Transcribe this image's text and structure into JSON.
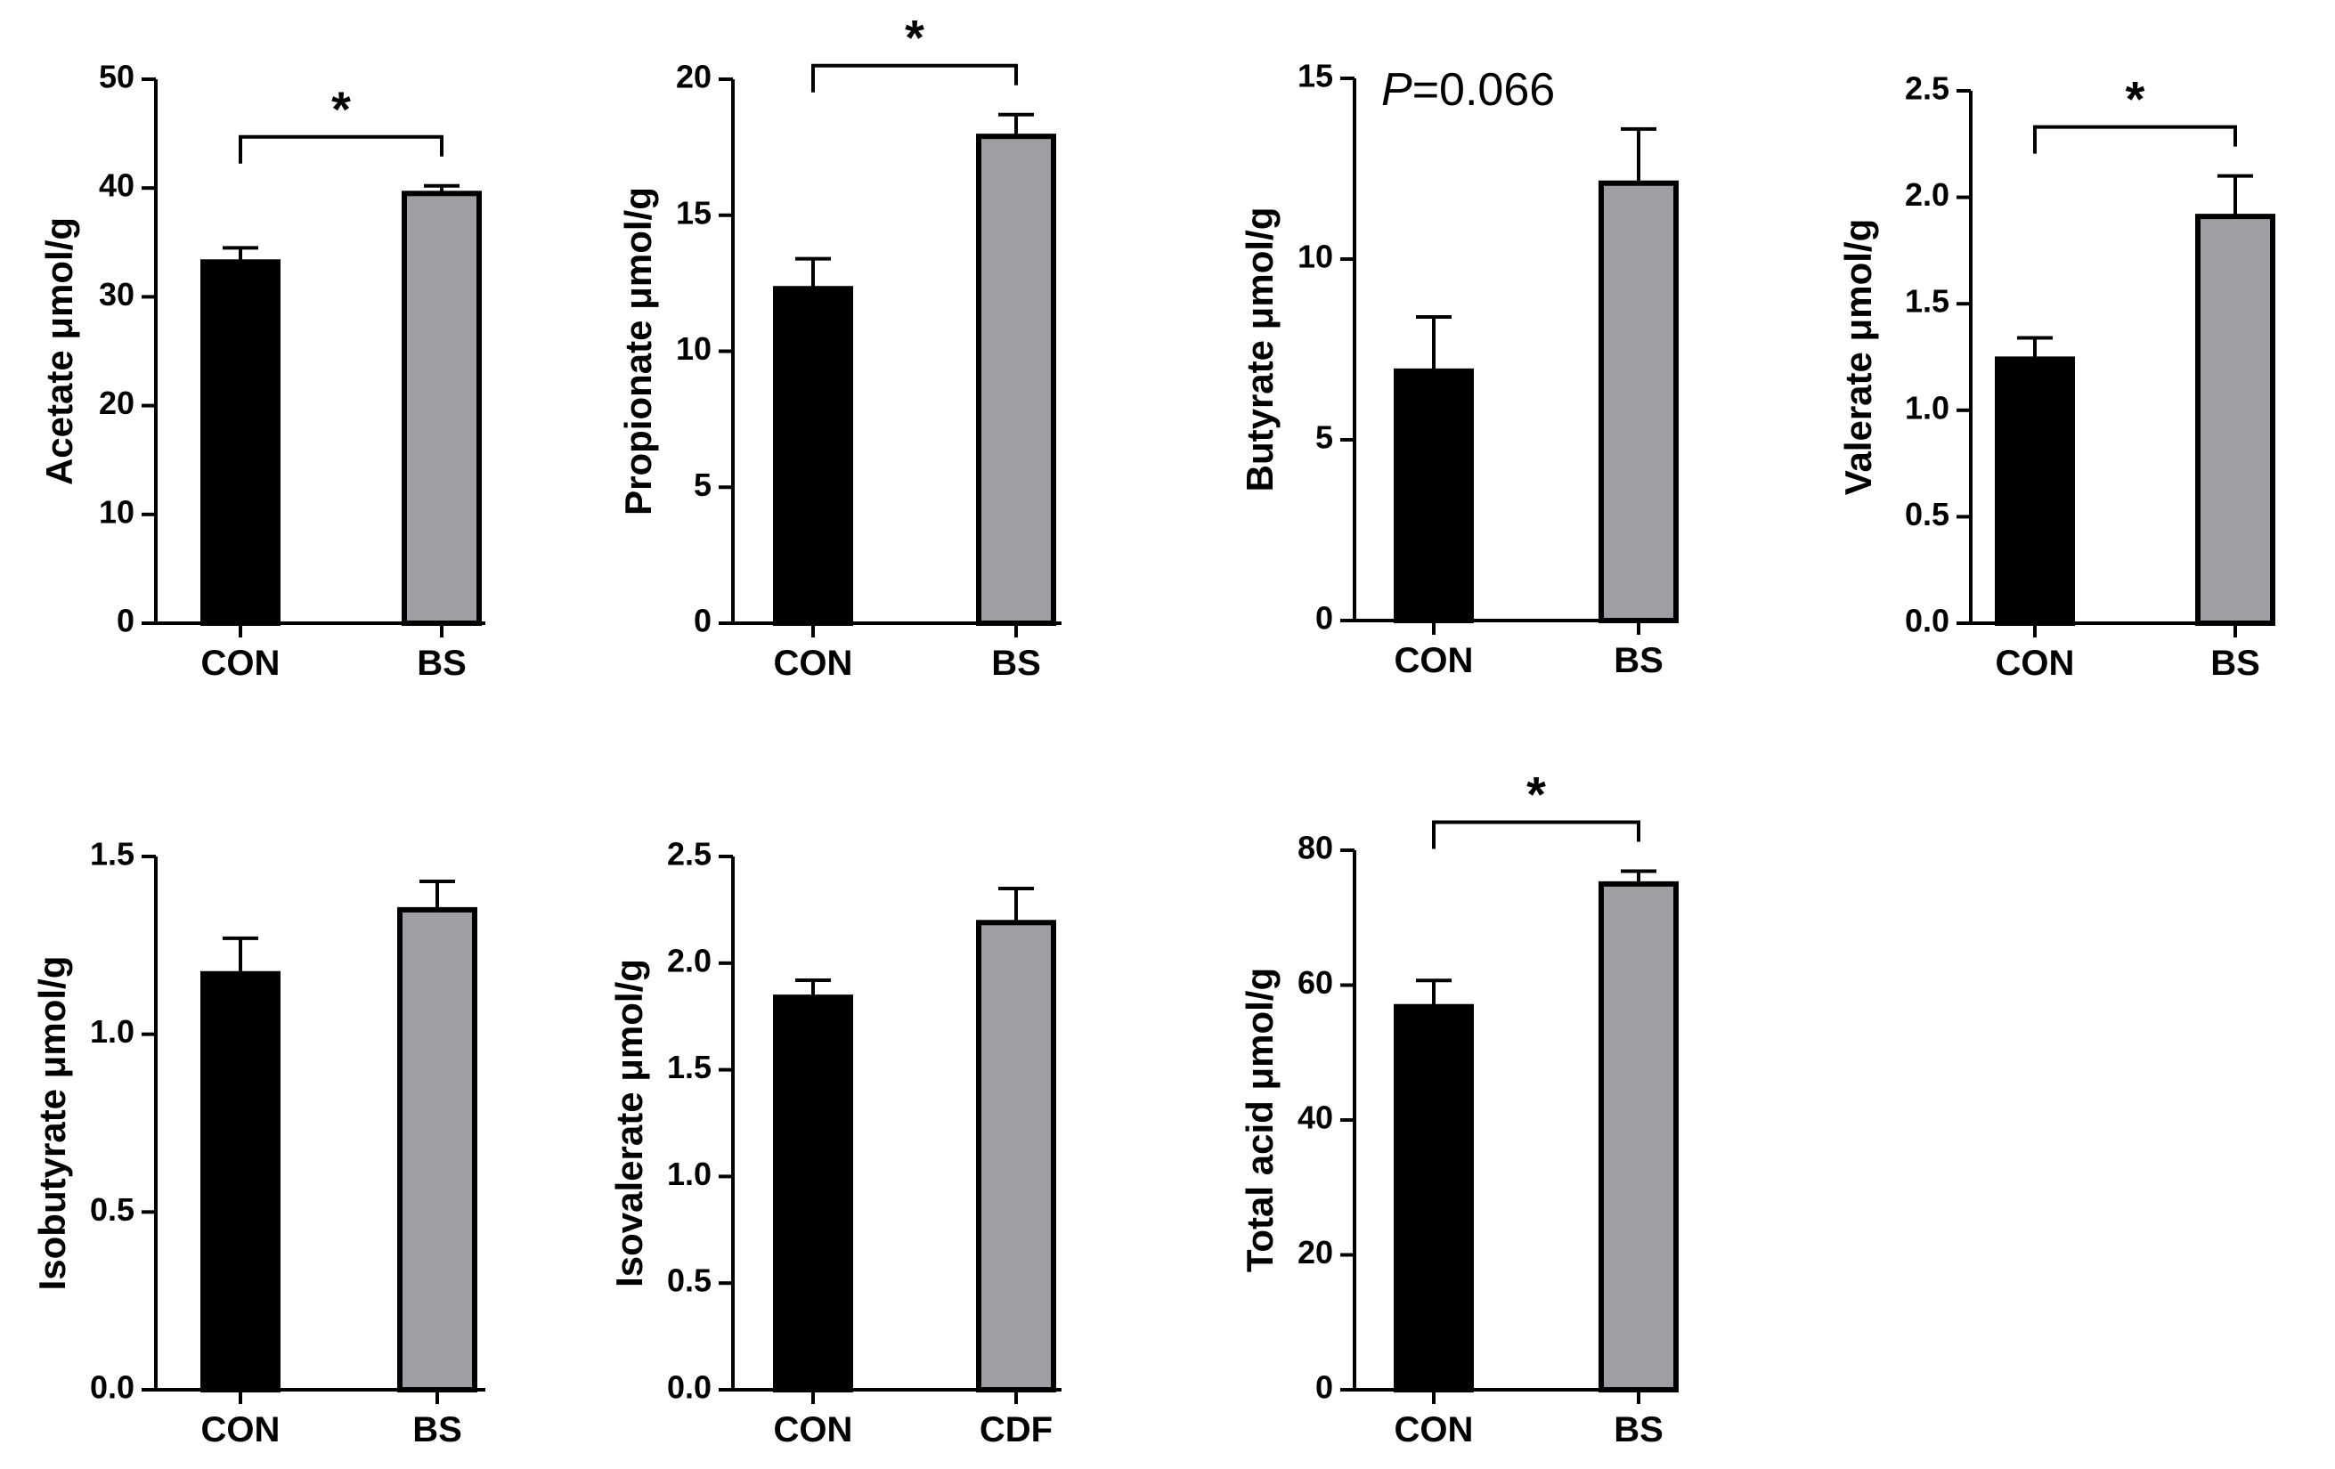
{
  "colors": {
    "CON": "#000000",
    "BS": "#9e9ea3",
    "CDF": "#9e9ea3",
    "axis": "#000000"
  },
  "chart_data": [
    {
      "type": "bar",
      "ylabel": "Acetate μmol/g",
      "categories": [
        "CON",
        "BS"
      ],
      "values": [
        33.2,
        39.5
      ],
      "errors": [
        1.3,
        0.7
      ],
      "ylim": [
        0,
        50
      ],
      "yticks": [
        "0",
        "10",
        "20",
        "30",
        "40",
        "50"
      ],
      "significance": "*",
      "annotation": null
    },
    {
      "type": "bar",
      "ylabel": "Propionate μmol/g",
      "categories": [
        "CON",
        "BS"
      ],
      "values": [
        12.3,
        17.9
      ],
      "errors": [
        1.1,
        0.8
      ],
      "ylim": [
        0,
        20
      ],
      "yticks": [
        "0",
        "5",
        "10",
        "15",
        "20"
      ],
      "significance": "*",
      "annotation": null
    },
    {
      "type": "bar",
      "ylabel": "Butyrate μmol/g",
      "categories": [
        "CON",
        "BS"
      ],
      "values": [
        6.9,
        12.1
      ],
      "errors": [
        1.5,
        1.5
      ],
      "ylim": [
        0,
        15
      ],
      "yticks": [
        "0",
        "5",
        "10",
        "15"
      ],
      "significance": null,
      "annotation": {
        "italic": "P",
        "text": "=0.066"
      }
    },
    {
      "type": "bar",
      "ylabel": "Valerate μmol/g",
      "categories": [
        "CON",
        "BS"
      ],
      "values": [
        1.24,
        1.91
      ],
      "errors": [
        0.1,
        0.19
      ],
      "ylim": [
        0,
        2.5
      ],
      "yticks": [
        "0.0",
        "0.5",
        "1.0",
        "1.5",
        "2.0",
        "2.5"
      ],
      "significance": "*",
      "annotation": null
    },
    {
      "type": "bar",
      "ylabel": "Isobutyrate μmol/g",
      "categories": [
        "CON",
        "BS"
      ],
      "values": [
        1.17,
        1.35
      ],
      "errors": [
        0.1,
        0.08
      ],
      "ylim": [
        0,
        1.5
      ],
      "yticks": [
        "0.0",
        "0.5",
        "1.0",
        "1.5"
      ],
      "significance": null,
      "annotation": null
    },
    {
      "type": "bar",
      "ylabel": "Isovalerate μmol/g",
      "categories": [
        "CON",
        "CDF"
      ],
      "values": [
        1.84,
        2.19
      ],
      "errors": [
        0.08,
        0.16
      ],
      "ylim": [
        0,
        2.5
      ],
      "yticks": [
        "0.0",
        "0.5",
        "1.0",
        "1.5",
        "2.0",
        "2.5"
      ],
      "significance": null,
      "annotation": null
    },
    {
      "type": "bar",
      "ylabel": "Total acid μmol/g",
      "categories": [
        "CON",
        "BS"
      ],
      "values": [
        56.8,
        75.0
      ],
      "errors": [
        3.9,
        1.9
      ],
      "ylim": [
        0,
        80
      ],
      "yticks": [
        "0",
        "20",
        "40",
        "60",
        "80"
      ],
      "significance": "*",
      "annotation": null
    }
  ]
}
